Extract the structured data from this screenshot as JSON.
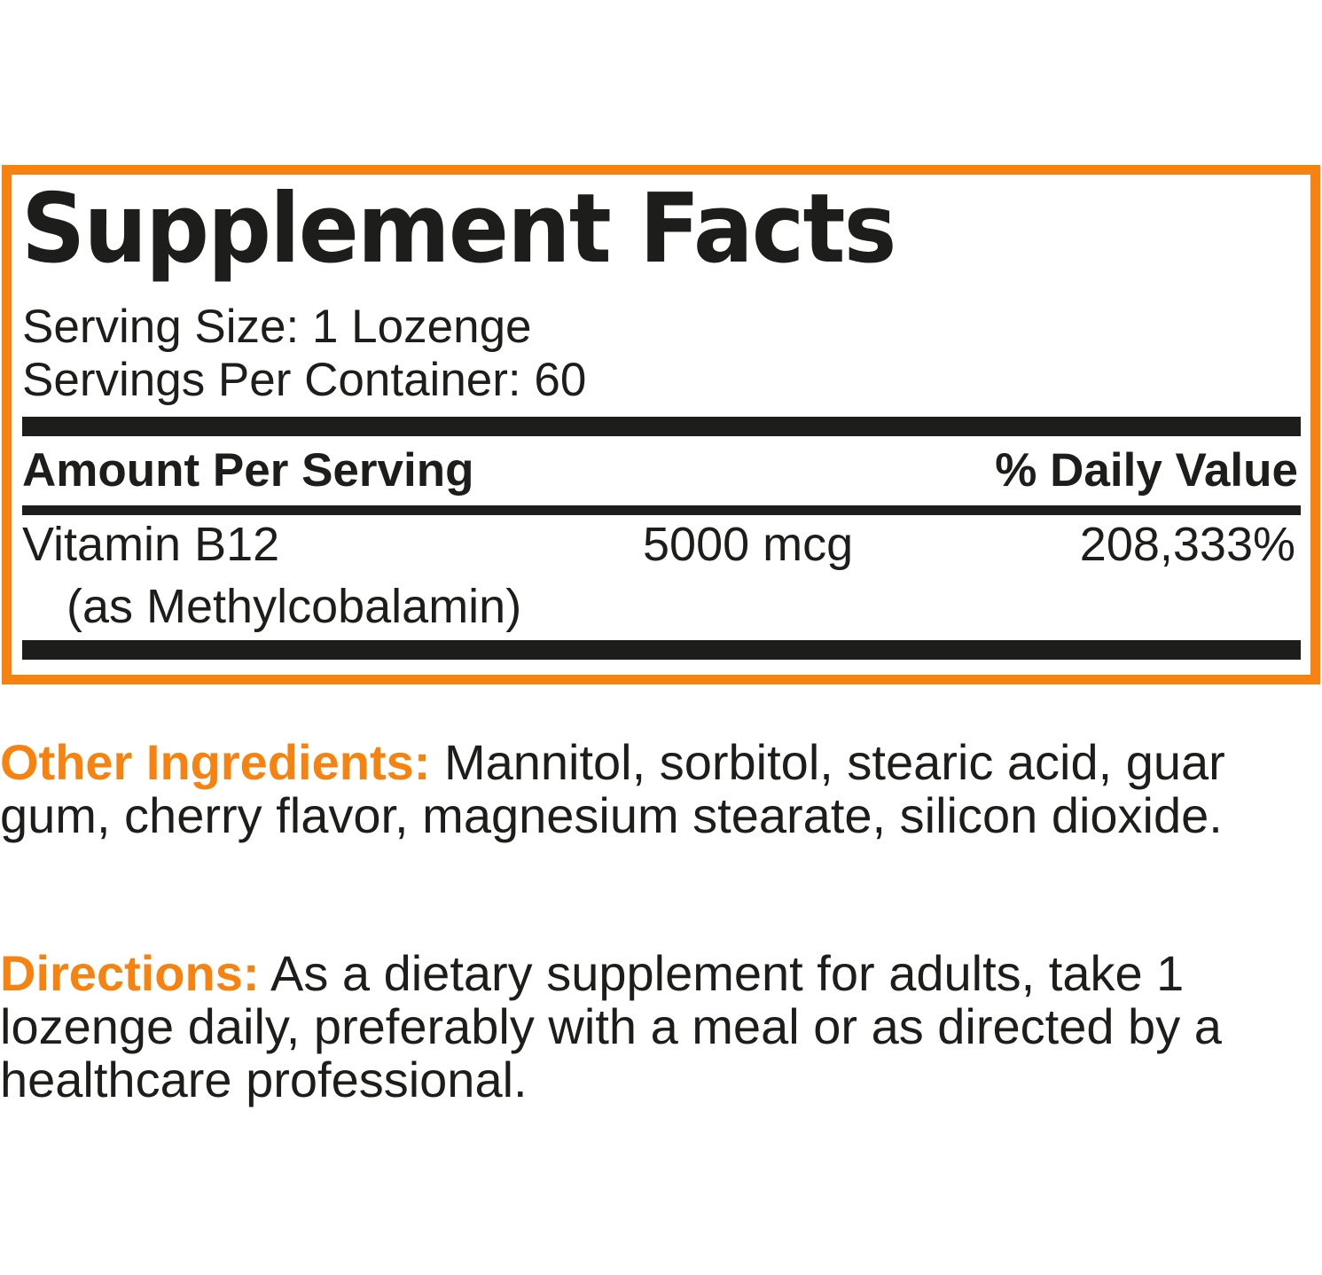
{
  "facts": {
    "title": "Supplement Facts",
    "serving_size": "Serving Size: 1 Lozenge",
    "servings_per_container": "Servings Per Container: 60",
    "amount_header": "Amount Per Serving",
    "dv_header": "% Daily Value",
    "rows": [
      {
        "name": "Vitamin B12",
        "source": "(as Methylcobalamin)",
        "amount": "5000 mcg",
        "dv": "208,333%"
      }
    ]
  },
  "other_ingredients": {
    "label": "Other Ingredients:",
    "text": "Mannitol, sorbitol, stearic acid, guar gum, cherry flavor, magnesium stearate, silicon dioxide."
  },
  "directions": {
    "label": "Directions:",
    "text": "As a dietary supplement for adults, take 1 lozenge daily, preferably with a meal or as directed by a healthcare professional."
  },
  "colors": {
    "accent": "#f7820f",
    "text": "#1d1d1b"
  }
}
